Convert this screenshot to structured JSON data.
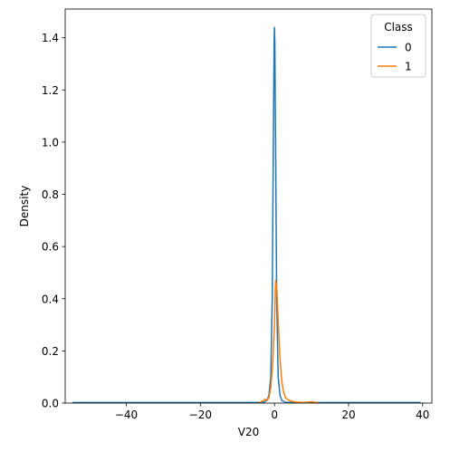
{
  "chart_data": {
    "type": "line",
    "title": "",
    "xlabel": "V20",
    "ylabel": "Density",
    "xlim": [
      -56.5,
      42.5
    ],
    "ylim": [
      0,
      1.51
    ],
    "xticks": [
      -40,
      -20,
      0,
      20,
      40
    ],
    "yticks": [
      0.0,
      0.2,
      0.4,
      0.6,
      0.8,
      1.0,
      1.2,
      1.4
    ],
    "xtick_labels": [
      "−40",
      "−20",
      "0",
      "20",
      "40"
    ],
    "ytick_labels": [
      "0.0",
      "0.2",
      "0.4",
      "0.6",
      "0.8",
      "1.0",
      "1.2",
      "1.4"
    ],
    "grid": false,
    "legend": {
      "title": "Class",
      "placement": "top-right"
    },
    "series": [
      {
        "name": "0",
        "color": "#1f77b4",
        "x": [
          -54.5,
          -20,
          -5,
          -3,
          -2,
          -1.5,
          -1,
          -0.6,
          -0.3,
          -0.1,
          0,
          0.1,
          0.3,
          0.6,
          1,
          1.5,
          2,
          3,
          5,
          20,
          39.5
        ],
        "y": [
          0.002,
          0.002,
          0.002,
          0.003,
          0.01,
          0.03,
          0.1,
          0.4,
          1.0,
          1.38,
          1.44,
          1.38,
          1.0,
          0.4,
          0.1,
          0.03,
          0.01,
          0.003,
          0.002,
          0.002,
          0.002
        ]
      },
      {
        "name": "1",
        "color": "#ff7f0e",
        "x": [
          -4,
          -3,
          -2.5,
          -2,
          -1.5,
          -1,
          -0.5,
          0,
          0.3,
          0.6,
          1,
          1.5,
          2,
          2.5,
          3,
          4,
          5,
          6,
          8,
          10,
          11,
          12
        ],
        "y": [
          0.002,
          0.01,
          0.015,
          0.01,
          0.02,
          0.06,
          0.14,
          0.3,
          0.47,
          0.45,
          0.32,
          0.17,
          0.08,
          0.04,
          0.02,
          0.01,
          0.006,
          0.004,
          0.002,
          0.005,
          0.003,
          0.0
        ]
      }
    ]
  }
}
